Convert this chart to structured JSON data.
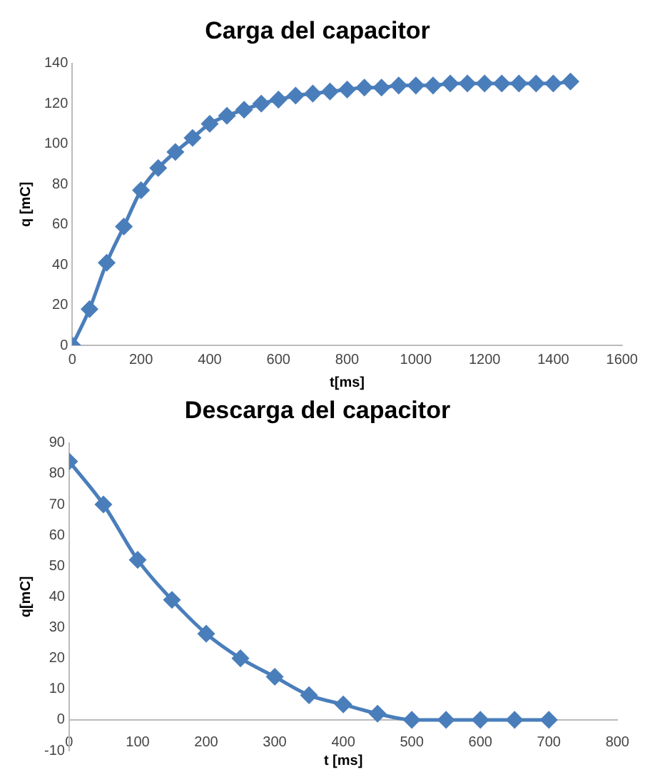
{
  "chart_data": [
    {
      "type": "line",
      "title": "Carga del capacitor",
      "xlabel": "t[ms]",
      "ylabel": "q [mC]",
      "x": [
        0,
        50,
        100,
        150,
        200,
        250,
        300,
        350,
        400,
        450,
        500,
        550,
        600,
        650,
        700,
        750,
        800,
        850,
        900,
        950,
        1000,
        1050,
        1100,
        1150,
        1200,
        1250,
        1300,
        1350,
        1400,
        1450
      ],
      "series": [
        {
          "color": "#4a7ebb",
          "values": [
            0,
            18,
            41,
            59,
            77,
            88,
            96,
            103,
            110,
            114,
            117,
            120,
            122,
            124,
            125,
            126,
            127,
            128,
            128,
            129,
            129,
            129,
            130,
            130,
            130,
            130,
            130,
            130,
            130,
            131
          ]
        }
      ],
      "xlim": [
        0,
        1600
      ],
      "xticks": [
        0,
        200,
        400,
        600,
        800,
        1000,
        1200,
        1400,
        1600
      ],
      "ylim": [
        0,
        140
      ],
      "yticks": [
        0,
        20,
        40,
        60,
        80,
        100,
        120,
        140
      ],
      "grid": false,
      "legend": false,
      "marker": "diamond",
      "line_style": "solid"
    },
    {
      "type": "line",
      "title": "Descarga del capacitor",
      "xlabel": "t [ms]",
      "ylabel": "q[mC]",
      "x": [
        0,
        50,
        100,
        150,
        200,
        250,
        300,
        350,
        400,
        450,
        500,
        550,
        600,
        650,
        700
      ],
      "series": [
        {
          "color": "#4a7ebb",
          "values": [
            84,
            70,
            52,
            39,
            28,
            20,
            14,
            8,
            5,
            2,
            0,
            0,
            0,
            0,
            0
          ]
        }
      ],
      "xlim": [
        0,
        800
      ],
      "xticks": [
        0,
        100,
        200,
        300,
        400,
        500,
        600,
        700,
        800
      ],
      "ylim": [
        -10,
        90
      ],
      "yticks": [
        -10,
        0,
        10,
        20,
        30,
        40,
        50,
        60,
        70,
        80,
        90
      ],
      "grid": false,
      "legend": false,
      "marker": "diamond",
      "line_style": "solid"
    }
  ]
}
